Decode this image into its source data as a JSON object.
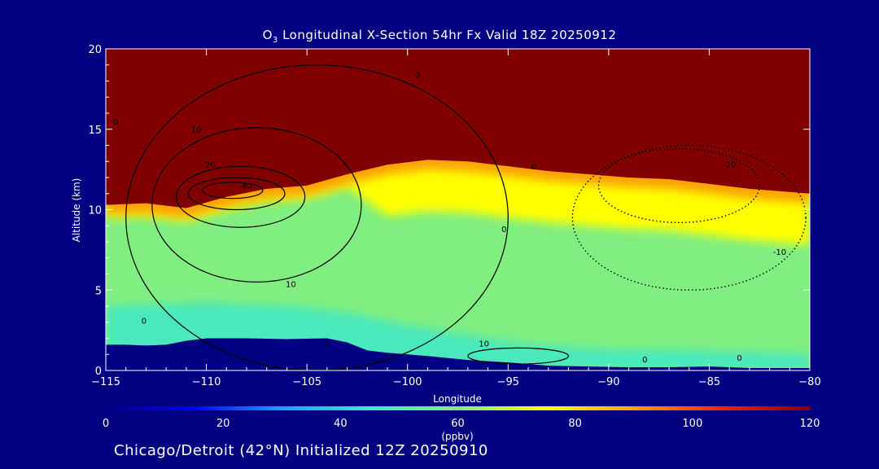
{
  "title": {
    "species_main": "O",
    "species_sub": "3",
    "rest": " Longitudinal X-Section 54hr  Fx Valid 18Z 20250912"
  },
  "footer": "Chicago/Detroit (42°N) Initialized 12Z 20250910",
  "chart_data": {
    "type": "heatmap",
    "xlabel": "Longitude",
    "ylabel": "Altitude (km)",
    "xlim": [
      -115,
      -80
    ],
    "ylim": [
      0,
      20
    ],
    "x_ticks": [
      -115,
      -110,
      -105,
      -100,
      -95,
      -90,
      -85,
      -80
    ],
    "x_tick_labels": [
      "−115",
      "−110",
      "−105",
      "−100",
      "−95",
      "−90",
      "−85",
      "−80"
    ],
    "y_ticks": [
      0,
      5,
      10,
      15,
      20
    ],
    "y_tick_labels": [
      "0",
      "5",
      "10",
      "15",
      "20"
    ],
    "colorbar": {
      "label": "(ppbv)",
      "range": [
        0,
        120
      ],
      "ticks": [
        0,
        20,
        40,
        60,
        80,
        100,
        120
      ],
      "tick_labels": [
        "0",
        "20",
        "40",
        "60",
        "80",
        "100",
        "120"
      ],
      "colors": [
        "#000080",
        "#0000ff",
        "#1ea0ff",
        "#40e8c8",
        "#80ee80",
        "#ffff00",
        "#ffa000",
        "#ff2000",
        "#800000"
      ]
    },
    "field": {
      "description_units": "ppbv",
      "tropopause_altitude_km": [
        [
          -115,
          10.3
        ],
        [
          -113,
          10.4
        ],
        [
          -111,
          10.1
        ],
        [
          -109,
          10.8
        ],
        [
          -107,
          11.3
        ],
        [
          -105,
          11.5
        ],
        [
          -103,
          12.2
        ],
        [
          -101,
          12.8
        ],
        [
          -99,
          13.1
        ],
        [
          -97,
          13.0
        ],
        [
          -95,
          12.7
        ],
        [
          -93,
          12.4
        ],
        [
          -91,
          12.2
        ],
        [
          -89,
          12.0
        ],
        [
          -87,
          11.9
        ],
        [
          -85,
          11.6
        ],
        [
          -83,
          11.3
        ],
        [
          -81,
          11.1
        ],
        [
          -80,
          11.0
        ]
      ],
      "stratosphere_value_ppbv": 120,
      "upper_troposphere_ppbv": 75,
      "mid_troposphere_ppbv": 62,
      "boundary_layer_ppbv": 50,
      "terrain_altitude_km": [
        [
          -115,
          1.6
        ],
        [
          -114,
          1.6
        ],
        [
          -113,
          1.55
        ],
        [
          -112,
          1.6
        ],
        [
          -111,
          1.85
        ],
        [
          -110,
          2.0
        ],
        [
          -108,
          2.0
        ],
        [
          -106,
          1.95
        ],
        [
          -104,
          2.0
        ],
        [
          -103,
          1.75
        ],
        [
          -102,
          1.25
        ],
        [
          -101,
          1.1
        ],
        [
          -99,
          0.9
        ],
        [
          -97,
          0.65
        ],
        [
          -95,
          0.5
        ],
        [
          -93,
          0.3
        ],
        [
          -91,
          0.25
        ],
        [
          -89,
          0.2
        ],
        [
          -87,
          0.2
        ],
        [
          -85,
          0.25
        ],
        [
          -83,
          0.15
        ],
        [
          -81,
          0.15
        ],
        [
          -80,
          0.15
        ]
      ]
    },
    "contours": [
      {
        "value": 40,
        "label": "40",
        "style": "solid",
        "center": [
          -108.7,
          11.2
        ],
        "rx": 1.5,
        "ry": 0.5
      },
      {
        "value": 30,
        "label": "",
        "style": "solid",
        "center": [
          -108.5,
          11.0
        ],
        "rx": 2.4,
        "ry": 1.0
      },
      {
        "value": 20,
        "label": "20",
        "style": "solid",
        "center": [
          -108.3,
          10.8
        ],
        "rx": 3.2,
        "ry": 1.9
      },
      {
        "value": 10,
        "label": "10",
        "style": "solid",
        "center": [
          -107.5,
          10.3
        ],
        "rx": 5.2,
        "ry": 4.8
      },
      {
        "value": 0,
        "label": "0",
        "style": "solid",
        "center": [
          -104.5,
          9.5
        ],
        "rx": 9.5,
        "ry": 9.5
      },
      {
        "value": -10,
        "label": "-10",
        "style": "dotted",
        "center": [
          -86.0,
          9.5
        ],
        "rx": 5.8,
        "ry": 4.5
      },
      {
        "value": -20,
        "label": "-20",
        "style": "dotted",
        "center": [
          -86.5,
          11.5
        ],
        "rx": 4.0,
        "ry": 2.3
      },
      {
        "value": 10,
        "label": "10",
        "style": "solid",
        "center": [
          -94.5,
          0.9
        ],
        "rx": 2.5,
        "ry": 0.5
      }
    ],
    "contour_labels": [
      {
        "text": "0",
        "x": -114.5,
        "y": 15.3
      },
      {
        "text": "0",
        "x": -99.5,
        "y": 18.2
      },
      {
        "text": "10",
        "x": -110.5,
        "y": 14.8
      },
      {
        "text": "20",
        "x": -109.8,
        "y": 12.6
      },
      {
        "text": "40",
        "x": -108.0,
        "y": 11.3
      },
      {
        "text": "10",
        "x": -105.8,
        "y": 5.2
      },
      {
        "text": "0",
        "x": -95.2,
        "y": 8.6
      },
      {
        "text": "0",
        "x": -113.1,
        "y": 2.9
      },
      {
        "text": "0",
        "x": -104.0,
        "y": 1.5
      },
      {
        "text": "10",
        "x": -96.2,
        "y": 1.5
      },
      {
        "text": "0",
        "x": -88.2,
        "y": 0.5
      },
      {
        "text": "0",
        "x": -83.5,
        "y": 0.6
      },
      {
        "text": "0",
        "x": -93.7,
        "y": 12.5
      },
      {
        "text": "-20",
        "x": -84.0,
        "y": 12.6
      },
      {
        "text": "-10",
        "x": -81.5,
        "y": 7.2
      }
    ]
  }
}
